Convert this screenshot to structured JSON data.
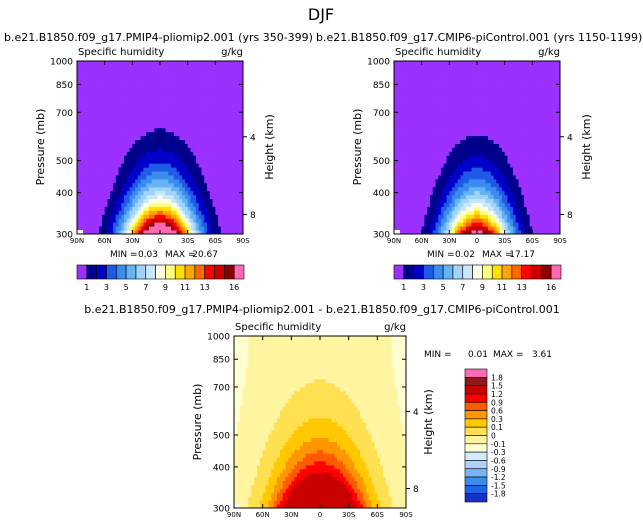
{
  "page_title": "DJF",
  "colors": {
    "main": [
      "#9b30ff",
      "#00008b",
      "#0000c8",
      "#1e5ae6",
      "#3c8cf0",
      "#64b4f5",
      "#a0d2fa",
      "#c8e6ff",
      "#ffffe6",
      "#ffff80",
      "#ffe000",
      "#ffa500",
      "#ff6a00",
      "#ff0000",
      "#c80000",
      "#8b0000",
      "#ff69b4"
    ],
    "diff": [
      "#9b30ff",
      "#00008b",
      "#1432c8",
      "#1e64e6",
      "#3c8cf0",
      "#78b4f5",
      "#aad2fa",
      "#d2ebff",
      "#ffffd2",
      "#fff5a0",
      "#ffe050",
      "#ffc800",
      "#ff9600",
      "#ff5a00",
      "#ff0000",
      "#c80000",
      "#8b1a1a",
      "#ff69b4"
    ]
  },
  "chart_data": [
    {
      "type": "heatmap",
      "name": "pliomip2",
      "title": "b.e21.B1850.f09_g17.PMIP4-pliomip2.001 (yrs 350-399)",
      "variable": "Specific humidity",
      "units": "g/kg",
      "ylabel": "Pressure (mb)",
      "ylabel_right": "Height (km)",
      "yticks": [
        "300",
        "400",
        "500",
        "700",
        "850",
        "1000"
      ],
      "ytick_values": [
        300,
        400,
        500,
        700,
        850,
        1000
      ],
      "xticks": [
        "90N",
        "60N",
        "30N",
        "0",
        "30S",
        "60S",
        "90S"
      ],
      "xtick_values": [
        90,
        60,
        30,
        0,
        -30,
        -60,
        -90
      ],
      "height_ticks": [
        "8",
        "4"
      ],
      "height_tick_values": [
        8,
        4
      ],
      "min_label": "MIN =",
      "min_value": "0.03",
      "max_label": "MAX =",
      "max_value": "20.67",
      "levels": [
        1,
        2,
        3,
        4,
        5,
        6,
        7,
        8,
        9,
        10,
        11,
        12,
        13,
        14,
        15,
        16
      ],
      "colorbar_labels": [
        "1",
        "3",
        "5",
        "7",
        "9",
        "11",
        "13",
        "16"
      ],
      "field": {
        "peak": 20.67,
        "surface_min": 0.03,
        "lat_width": 38,
        "floor": 0.03
      },
      "xlim": [
        90,
        -90
      ],
      "ylim": [
        1000,
        300
      ]
    },
    {
      "type": "heatmap",
      "name": "picontrol",
      "title": "b.e21.B1850.f09_g17.CMIP6-piControl.001 (yrs 1150-1199)",
      "variable": "Specific humidity",
      "units": "g/kg",
      "ylabel": "Pressure (mb)",
      "ylabel_right": "Height (km)",
      "yticks": [
        "300",
        "400",
        "500",
        "700",
        "850",
        "1000"
      ],
      "ytick_values": [
        300,
        400,
        500,
        700,
        850,
        1000
      ],
      "xticks": [
        "90N",
        "60N",
        "30N",
        "0",
        "30S",
        "60S",
        "90S"
      ],
      "xtick_values": [
        90,
        60,
        30,
        0,
        -30,
        -60,
        -90
      ],
      "height_ticks": [
        "8",
        "4"
      ],
      "height_tick_values": [
        8,
        4
      ],
      "min_label": "MIN =",
      "min_value": "0.02",
      "max_label": "MAX =",
      "max_value": "17.17",
      "levels": [
        1,
        2,
        3,
        4,
        5,
        6,
        7,
        8,
        9,
        10,
        11,
        12,
        13,
        14,
        15,
        16
      ],
      "colorbar_labels": [
        "1",
        "3",
        "5",
        "7",
        "9",
        "11",
        "13",
        "16"
      ],
      "field": {
        "peak": 17.17,
        "surface_min": 0.02,
        "lat_width": 36,
        "floor": 0.02
      },
      "xlim": [
        90,
        -90
      ],
      "ylim": [
        1000,
        300
      ]
    },
    {
      "type": "heatmap",
      "name": "difference",
      "title": "b.e21.B1850.f09_g17.PMIP4-pliomip2.001 - b.e21.B1850.f09_g17.CMIP6-piControl.001",
      "variable": "Specific humidity",
      "units": "g/kg",
      "ylabel": "Pressure (mb)",
      "ylabel_right": "Height (km)",
      "yticks": [
        "300",
        "400",
        "500",
        "700",
        "850",
        "1000"
      ],
      "ytick_values": [
        300,
        400,
        500,
        700,
        850,
        1000
      ],
      "xticks": [
        "90N",
        "60N",
        "30N",
        "0",
        "30S",
        "60S",
        "90S"
      ],
      "xtick_values": [
        90,
        60,
        30,
        0,
        -30,
        -60,
        -90
      ],
      "height_ticks": [
        "8",
        "4"
      ],
      "height_tick_values": [
        8,
        4
      ],
      "min_label": "MIN =",
      "min_value": "0.01",
      "max_label": "MAX =",
      "max_value": "3.61",
      "levels": [
        -1.8,
        -1.5,
        -1.2,
        -0.9,
        -0.6,
        -0.3,
        -0.1,
        0,
        0.1,
        0.3,
        0.6,
        0.9,
        1.2,
        1.5,
        1.8
      ],
      "colorbar_labels": [
        "1.8",
        "1.5",
        "1.2",
        "0.9",
        "0.6",
        "0.3",
        "0.1",
        "0",
        "-0.1",
        "-0.3",
        "-0.6",
        "-0.9",
        "-1.2",
        "-1.5",
        "-1.8"
      ],
      "field": {
        "peak": 3.61,
        "surface_min": 0.01,
        "lat_width": 45,
        "floor": 0.08
      },
      "xlim": [
        90,
        -90
      ],
      "ylim": [
        1000,
        300
      ]
    }
  ]
}
